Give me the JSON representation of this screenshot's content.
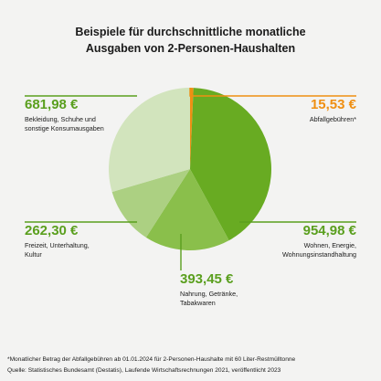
{
  "title": {
    "line1": "Beispiele für durchschnittliche monatliche",
    "line2": "Ausgaben von 2-Personen-Haushalten"
  },
  "chart_data": {
    "type": "pie",
    "title": "Beispiele für durchschnittliche monatliche Ausgaben von 2-Personen-Haushalten",
    "start": "top",
    "direction": "clockwise",
    "slices": [
      {
        "value_label": "15,53 €",
        "value": 15.53,
        "label_lines": [
          "Abfallgebühren*"
        ],
        "color": "#ef8f12"
      },
      {
        "value_label": "954,98 €",
        "value": 954.98,
        "label_lines": [
          "Wohnen, Energie,",
          "Wohnungsinstandhaltung"
        ],
        "color": "#68ab22"
      },
      {
        "value_label": "393,45 €",
        "value": 393.45,
        "label_lines": [
          "Nahrung, Getränke,",
          "Tabakwaren"
        ],
        "color": "#8abf4b"
      },
      {
        "value_label": "262,30 €",
        "value": 262.3,
        "label_lines": [
          "Freizeit, Unterhaltung,",
          "Kultur"
        ],
        "color": "#acd082"
      },
      {
        "value_label": "681,98 €",
        "value": 681.98,
        "label_lines": [
          "Bekleidung, Schuhe und",
          "sonstige Konsumausgaben"
        ],
        "color": "#d2e4bd"
      }
    ],
    "value_color": "#5a9f1e",
    "highlight_color": "#ef8f12"
  },
  "footnote": "*Monatlicher Betrag der Abfallgebühren ab 01.01.2024 für 2-Personen-Haushalte mit 60 Liter-Restmülltonne",
  "source": "Quelle: Statistisches Bundesamt (Destatis), Laufende Wirtschaftsrechnungen  2021, veröffentlicht 2023"
}
